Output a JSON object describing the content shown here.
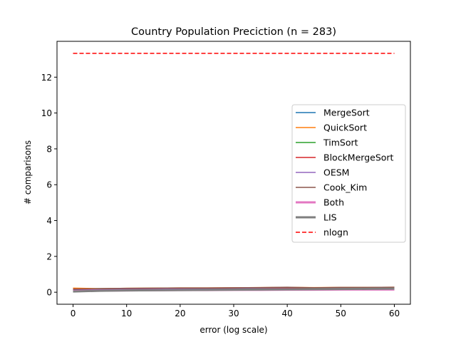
{
  "chart_data": {
    "type": "line",
    "title": "Country Population Preciction (n = 283)",
    "xlabel": "error (log scale)",
    "ylabel": "# comparisons",
    "xlim": [
      -3,
      63
    ],
    "ylim": [
      -0.67,
      14.0
    ],
    "xticks": [
      0,
      10,
      20,
      30,
      40,
      50,
      60
    ],
    "yticks": [
      0,
      2,
      4,
      6,
      8,
      10,
      12
    ],
    "legend_position": "center-right",
    "x": [
      0,
      5,
      10,
      15,
      20,
      25,
      30,
      35,
      40,
      45,
      50,
      55,
      60
    ],
    "series": [
      {
        "name": "MergeSort",
        "color": "#1f77b4",
        "width": 1.5,
        "dash": "solid",
        "values": [
          0.19,
          0.2,
          0.21,
          0.22,
          0.23,
          0.23,
          0.24,
          0.25,
          0.25,
          0.25,
          0.26,
          0.26,
          0.27
        ]
      },
      {
        "name": "QuickSort",
        "color": "#ff7f0e",
        "width": 1.5,
        "dash": "solid",
        "values": [
          0.23,
          0.2,
          0.22,
          0.23,
          0.24,
          0.24,
          0.25,
          0.26,
          0.27,
          0.26,
          0.27,
          0.27,
          0.28
        ]
      },
      {
        "name": "TimSort",
        "color": "#2ca02c",
        "width": 1.5,
        "dash": "solid",
        "values": [
          0.12,
          0.14,
          0.15,
          0.16,
          0.17,
          0.17,
          0.18,
          0.18,
          0.19,
          0.19,
          0.19,
          0.2,
          0.2
        ]
      },
      {
        "name": "BlockMergeSort",
        "color": "#d62728",
        "width": 1.5,
        "dash": "solid",
        "values": [
          0.18,
          0.19,
          0.2,
          0.21,
          0.22,
          0.22,
          0.23,
          0.24,
          0.24,
          0.24,
          0.25,
          0.25,
          0.26
        ]
      },
      {
        "name": "OESM",
        "color": "#9467bd",
        "width": 1.5,
        "dash": "solid",
        "values": [
          0.14,
          0.15,
          0.16,
          0.17,
          0.18,
          0.18,
          0.19,
          0.2,
          0.2,
          0.2,
          0.21,
          0.21,
          0.22
        ]
      },
      {
        "name": "Cook_Kim",
        "color": "#8c564b",
        "width": 1.5,
        "dash": "solid",
        "values": [
          0.17,
          0.2,
          0.22,
          0.23,
          0.24,
          0.24,
          0.25,
          0.26,
          0.28,
          0.25,
          0.27,
          0.27,
          0.28
        ]
      },
      {
        "name": "Both",
        "color": "#e377c2",
        "width": 3,
        "dash": "solid",
        "values": [
          0.06,
          0.09,
          0.1,
          0.11,
          0.12,
          0.12,
          0.13,
          0.13,
          0.14,
          0.14,
          0.15,
          0.15,
          0.15
        ]
      },
      {
        "name": "LIS",
        "color": "#7f7f7f",
        "width": 3,
        "dash": "solid",
        "values": [
          0.04,
          0.08,
          0.1,
          0.11,
          0.12,
          0.13,
          0.14,
          0.15,
          0.16,
          0.17,
          0.18,
          0.19,
          0.2
        ]
      },
      {
        "name": "nlogn",
        "color": "#ff0000",
        "width": 1.5,
        "dash": "dashed",
        "values": [
          13.33,
          13.33,
          13.33,
          13.33,
          13.33,
          13.33,
          13.33,
          13.33,
          13.33,
          13.33,
          13.33,
          13.33,
          13.33
        ]
      }
    ]
  }
}
